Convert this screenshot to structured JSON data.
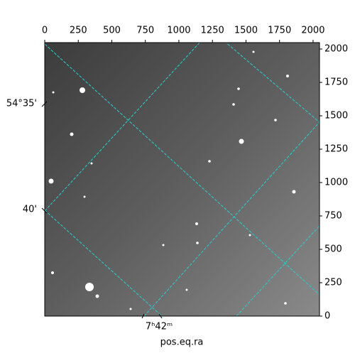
{
  "chart_data": {
    "type": "image",
    "xlabel": "pos.eq.ra",
    "xlim": [
      0,
      2048
    ],
    "xticks": [
      0,
      250,
      500,
      750,
      1000,
      1250,
      1500,
      1750,
      2000
    ],
    "ylim": [
      0,
      2048
    ],
    "yticks": [
      0,
      250,
      500,
      750,
      1000,
      1250,
      1500,
      1750,
      2000
    ],
    "dec_tick_labels": [
      "54°35'",
      "40'"
    ],
    "ra_tick_labels": [
      "7ʰ42ᵐ"
    ],
    "grid": true,
    "grid_color": "#22d3d3"
  }
}
